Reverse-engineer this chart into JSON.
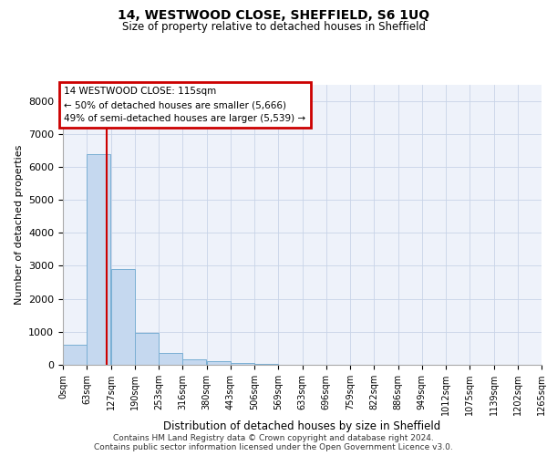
{
  "title": "14, WESTWOOD CLOSE, SHEFFIELD, S6 1UQ",
  "subtitle": "Size of property relative to detached houses in Sheffield",
  "xlabel": "Distribution of detached houses by size in Sheffield",
  "ylabel": "Number of detached properties",
  "footer_line1": "Contains HM Land Registry data © Crown copyright and database right 2024.",
  "footer_line2": "Contains public sector information licensed under the Open Government Licence v3.0.",
  "annotation_line1": "14 WESTWOOD CLOSE: 115sqm",
  "annotation_line2": "← 50% of detached houses are smaller (5,666)",
  "annotation_line3": "49% of semi-detached houses are larger (5,539) →",
  "bar_color": "#c5d8ef",
  "bar_edge_color": "#7aafd4",
  "grid_color": "#c8d4e8",
  "background_color": "#eef2fa",
  "red_line_color": "#cc0000",
  "annotation_box_color": "#cc0000",
  "bin_edges": [
    0,
    63,
    127,
    190,
    253,
    316,
    380,
    443,
    506,
    569,
    633,
    696,
    759,
    822,
    886,
    949,
    1012,
    1075,
    1139,
    1202,
    1265
  ],
  "bin_labels": [
    "0sqm",
    "63sqm",
    "127sqm",
    "190sqm",
    "253sqm",
    "316sqm",
    "380sqm",
    "443sqm",
    "506sqm",
    "569sqm",
    "633sqm",
    "696sqm",
    "759sqm",
    "822sqm",
    "886sqm",
    "949sqm",
    "1012sqm",
    "1075sqm",
    "1139sqm",
    "1202sqm",
    "1265sqm"
  ],
  "bar_heights": [
    600,
    6380,
    2900,
    970,
    360,
    160,
    100,
    60,
    30,
    0,
    0,
    0,
    0,
    0,
    0,
    0,
    0,
    0,
    0,
    0
  ],
  "red_line_x": 115,
  "ylim": [
    0,
    8500
  ],
  "yticks": [
    0,
    1000,
    2000,
    3000,
    4000,
    5000,
    6000,
    7000,
    8000
  ]
}
